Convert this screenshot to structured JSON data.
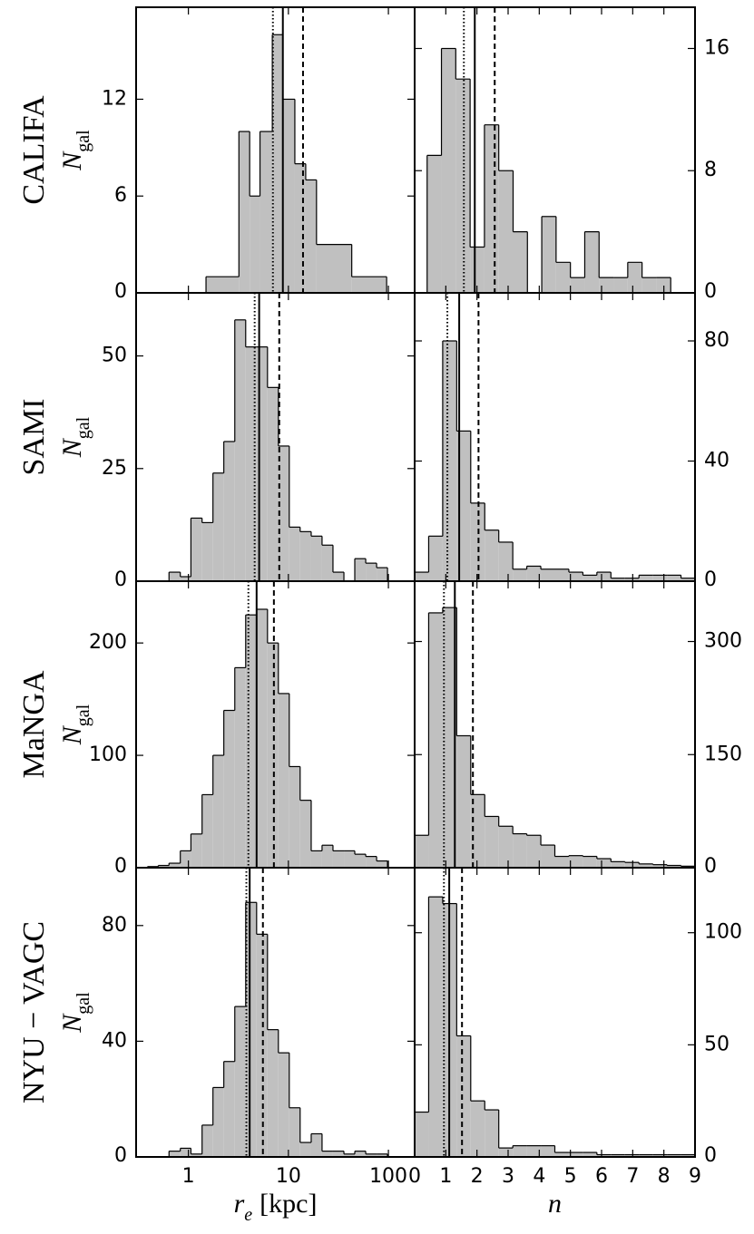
{
  "chart_data": [
    {
      "type": "histogram",
      "row_label": "CALIFA",
      "ylabel": "N",
      "ylabel_sub": "gal",
      "xscale": "log",
      "xlim": [
        0.3,
        183
      ],
      "xticks": [
        1,
        10,
        100
      ],
      "show_xticklabels": false,
      "ylim": [
        0,
        17.7
      ],
      "yticks": [
        0,
        6,
        12
      ],
      "yaxis_side": "left",
      "color": "#c0c0c0",
      "bins": [
        1.5,
        3.2,
        4.1,
        5.2,
        6.9,
        8.8,
        11.6,
        14.9,
        19.1,
        43,
        96
      ],
      "values": [
        1,
        10,
        6,
        10,
        16,
        12,
        8,
        7,
        3,
        1
      ],
      "lines": [
        {
          "value": 7.0,
          "style": "dotted"
        },
        {
          "value": 8.8,
          "style": "solid"
        },
        {
          "value": 14.0,
          "style": "dashed"
        }
      ]
    },
    {
      "type": "histogram",
      "xscale": "linear",
      "xlim": [
        0,
        9
      ],
      "xticks": [
        0,
        1,
        2,
        3,
        4,
        5,
        6,
        7,
        8,
        9
      ],
      "show_xticklabels": false,
      "ylim": [
        0,
        18.7
      ],
      "yticks": [
        0,
        8,
        16
      ],
      "yaxis_side": "right",
      "color": "#c0c0c0",
      "bins": [
        0.4,
        0.86,
        1.32,
        1.78,
        2.24,
        2.7,
        3.16,
        3.62,
        4.08,
        4.54,
        5.0,
        5.46,
        5.92,
        6.38,
        6.84,
        7.3,
        7.76,
        8.22
      ],
      "values": [
        9,
        16,
        14,
        3,
        11,
        8,
        4,
        0,
        5,
        2,
        1,
        4,
        1,
        1,
        2,
        1,
        1
      ],
      "lines": [
        {
          "value": 1.58,
          "style": "dotted"
        },
        {
          "value": 1.93,
          "style": "solid"
        },
        {
          "value": 2.57,
          "style": "dashed"
        }
      ]
    },
    {
      "type": "histogram",
      "row_label": "SAMI",
      "ylabel": "N",
      "ylabel_sub": "gal",
      "xscale": "log",
      "xlim": [
        0.3,
        183
      ],
      "xticks": [
        1,
        10,
        100
      ],
      "show_xticklabels": false,
      "ylim": [
        0,
        64
      ],
      "yticks": [
        0,
        25,
        50
      ],
      "yaxis_side": "left",
      "color": "#c0c0c0",
      "bins": [
        0.64,
        0.83,
        1.06,
        1.37,
        1.76,
        2.26,
        2.91,
        3.74,
        4.81,
        6.18,
        7.94,
        10.2,
        13.1,
        16.9,
        21.7,
        27.9,
        35.9,
        46.1,
        59.3,
        76.2,
        97.9
      ],
      "values": [
        2,
        1,
        14,
        13,
        24,
        31,
        58,
        52,
        52,
        43,
        30,
        12,
        11,
        10,
        8,
        2,
        0,
        5,
        4,
        3
      ],
      "lines": [
        {
          "value": 4.6,
          "style": "dotted"
        },
        {
          "value": 5.1,
          "style": "solid"
        },
        {
          "value": 8.1,
          "style": "dashed"
        }
      ]
    },
    {
      "type": "histogram",
      "xscale": "linear",
      "xlim": [
        0,
        9
      ],
      "xticks": [
        0,
        1,
        2,
        3,
        4,
        5,
        6,
        7,
        8,
        9
      ],
      "show_xticklabels": false,
      "ylim": [
        0,
        96
      ],
      "yticks": [
        0,
        40,
        80
      ],
      "yaxis_side": "right",
      "color": "#c0c0c0",
      "bins": [
        0,
        0.45,
        0.9,
        1.35,
        1.8,
        2.25,
        2.7,
        3.15,
        3.6,
        4.05,
        4.5,
        4.95,
        5.4,
        5.85,
        6.3,
        6.75,
        7.2,
        7.65,
        8.1,
        8.55,
        9.0
      ],
      "values": [
        3,
        15,
        80,
        50,
        26,
        17,
        13,
        4,
        5,
        4,
        4,
        3,
        2,
        3,
        1,
        1,
        2,
        2,
        2,
        1
      ],
      "lines": [
        {
          "value": 1.05,
          "style": "dotted"
        },
        {
          "value": 1.43,
          "style": "solid"
        },
        {
          "value": 2.05,
          "style": "dashed"
        }
      ]
    },
    {
      "type": "histogram",
      "row_label": "MaNGA",
      "ylabel": "N",
      "ylabel_sub": "gal",
      "xscale": "log",
      "xlim": [
        0.3,
        183
      ],
      "xticks": [
        1,
        10,
        100
      ],
      "show_xticklabels": false,
      "ylim": [
        0,
        255
      ],
      "yticks": [
        0,
        100,
        200
      ],
      "yaxis_side": "left",
      "color": "#c0c0c0",
      "bins": [
        0.39,
        0.5,
        0.64,
        0.83,
        1.06,
        1.37,
        1.76,
        2.26,
        2.91,
        3.74,
        4.81,
        6.18,
        7.94,
        10.2,
        13.1,
        16.9,
        21.7,
        27.9,
        35.9,
        46.1,
        59.3,
        76.2,
        97.9
      ],
      "values": [
        1,
        2,
        4,
        15,
        30,
        65,
        100,
        140,
        178,
        225,
        230,
        200,
        155,
        90,
        60,
        15,
        20,
        15,
        15,
        12,
        10,
        6
      ],
      "lines": [
        {
          "value": 3.98,
          "style": "dotted"
        },
        {
          "value": 4.81,
          "style": "solid"
        },
        {
          "value": 7.16,
          "style": "dashed"
        }
      ]
    },
    {
      "type": "histogram",
      "xscale": "linear",
      "xlim": [
        0,
        9
      ],
      "xticks": [
        0,
        1,
        2,
        3,
        4,
        5,
        6,
        7,
        8,
        9
      ],
      "show_xticklabels": false,
      "ylim": [
        0,
        380
      ],
      "yticks": [
        0,
        150,
        300
      ],
      "yaxis_side": "right",
      "color": "#c0c0c0",
      "bins": [
        0,
        0.45,
        0.9,
        1.35,
        1.8,
        2.25,
        2.7,
        3.15,
        3.6,
        4.05,
        4.5,
        4.95,
        5.4,
        5.85,
        6.3,
        6.75,
        7.2,
        7.65,
        8.1,
        8.55,
        9.0
      ],
      "values": [
        43,
        338,
        345,
        175,
        97,
        68,
        55,
        45,
        43,
        30,
        15,
        16,
        15,
        12,
        8,
        7,
        5,
        4,
        3,
        2
      ],
      "lines": [
        {
          "value": 0.94,
          "style": "dotted"
        },
        {
          "value": 1.29,
          "style": "solid"
        },
        {
          "value": 1.87,
          "style": "dashed"
        }
      ]
    },
    {
      "type": "histogram",
      "row_label": "NYU − VAGC",
      "ylabel": "N",
      "ylabel_sub": "gal",
      "xlabel": "r",
      "xlabel_sub": "e",
      "xlabel_unit": "[kpc]",
      "xscale": "log",
      "xlim": [
        0.3,
        183
      ],
      "xticks": [
        1,
        10,
        100
      ],
      "show_xticklabels": true,
      "ylim": [
        0,
        100
      ],
      "yticks": [
        0,
        40,
        80
      ],
      "yaxis_side": "left",
      "color": "#c0c0c0",
      "bins": [
        0.64,
        0.83,
        1.06,
        1.37,
        1.76,
        2.26,
        2.91,
        3.74,
        4.81,
        6.18,
        7.94,
        10.2,
        13.1,
        16.9,
        21.7,
        27.9,
        35.9,
        46.1,
        59.3,
        76.2,
        97.9
      ],
      "values": [
        2,
        3,
        1,
        11,
        24,
        33,
        52,
        88,
        77,
        44,
        36,
        17,
        5,
        8,
        2,
        2,
        1,
        2,
        1,
        1
      ],
      "lines": [
        {
          "value": 3.8,
          "style": "dotted"
        },
        {
          "value": 4.1,
          "style": "solid"
        },
        {
          "value": 5.56,
          "style": "dashed"
        }
      ]
    },
    {
      "type": "histogram",
      "xlabel": "n",
      "xscale": "linear",
      "xlim": [
        0,
        9
      ],
      "xticks": [
        0,
        1,
        2,
        3,
        4,
        5,
        6,
        7,
        8,
        9
      ],
      "show_xticklabels": true,
      "ylim": [
        0,
        129
      ],
      "yticks": [
        0,
        50,
        100
      ],
      "yaxis_side": "right",
      "color": "#c0c0c0",
      "bins": [
        0,
        0.45,
        0.9,
        1.35,
        1.8,
        2.25,
        2.7,
        3.15,
        3.6,
        4.05,
        4.5,
        4.95,
        5.4,
        5.85,
        6.3,
        6.75,
        7.2,
        7.65,
        8.1,
        8.55,
        9.0
      ],
      "values": [
        20,
        116,
        113,
        54,
        25,
        21,
        4,
        5,
        5,
        5,
        2,
        2,
        2,
        1,
        1,
        1,
        1,
        1,
        1,
        1
      ],
      "lines": [
        {
          "value": 0.94,
          "style": "dotted"
        },
        {
          "value": 1.11,
          "style": "solid"
        },
        {
          "value": 1.52,
          "style": "dashed"
        }
      ]
    }
  ]
}
